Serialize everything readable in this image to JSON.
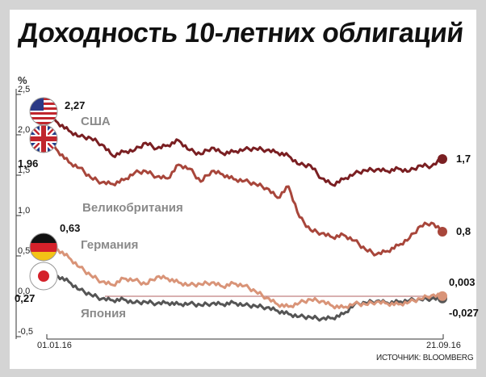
{
  "title": "Доходность 10-летних облигаций",
  "source": "ИСТОЧНИК: BLOOMBERG",
  "chart_data": {
    "type": "line",
    "ylabel": "%",
    "ylim": [
      -0.5,
      2.5
    ],
    "yticks": [
      {
        "value": 2.5,
        "label": "2,5"
      },
      {
        "value": 2.0,
        "label": "2,0"
      },
      {
        "value": 1.5,
        "label": "1,5"
      },
      {
        "value": 1.0,
        "label": "1,0"
      },
      {
        "value": 0.5,
        "label": "0,5"
      },
      {
        "value": 0.0,
        "label": "0,0"
      },
      {
        "value": -0.5,
        "label": "-0,5"
      }
    ],
    "x_start_label": "01.01.16",
    "x_end_label": "21.09.16",
    "reference_line": 0,
    "series": [
      {
        "name": "США",
        "color": "#7a1f22",
        "flag": "us-flag-icon",
        "start_label": "2,27",
        "end_label": "1,7",
        "values": [
          2.27,
          2.15,
          2.05,
          1.98,
          1.96,
          1.88,
          1.74,
          1.79,
          1.81,
          1.9,
          1.83,
          1.87,
          1.93,
          1.81,
          1.76,
          1.84,
          1.77,
          1.79,
          1.82,
          1.83,
          1.81,
          1.78,
          1.74,
          1.63,
          1.62,
          1.46,
          1.38,
          1.45,
          1.52,
          1.56,
          1.57,
          1.55,
          1.58,
          1.55,
          1.62,
          1.61,
          1.7
        ]
      },
      {
        "name": "Великобритания",
        "color": "#a8463b",
        "flag": "uk-flag-icon",
        "start_label": "1,96",
        "end_label": "0,8",
        "values": [
          1.96,
          1.8,
          1.66,
          1.59,
          1.47,
          1.41,
          1.39,
          1.44,
          1.53,
          1.55,
          1.48,
          1.46,
          1.63,
          1.58,
          1.42,
          1.55,
          1.51,
          1.45,
          1.43,
          1.39,
          1.34,
          1.22,
          1.36,
          0.98,
          0.82,
          0.78,
          0.73,
          0.76,
          0.69,
          0.58,
          0.52,
          0.56,
          0.63,
          0.72,
          0.87,
          0.91,
          0.8
        ]
      },
      {
        "name": "Германия",
        "color": "#d99478",
        "flag": "de-flag-icon",
        "start_label": "0,63",
        "end_label": "0,003",
        "values": [
          0.63,
          0.58,
          0.48,
          0.36,
          0.26,
          0.18,
          0.14,
          0.22,
          0.2,
          0.15,
          0.24,
          0.22,
          0.17,
          0.14,
          0.15,
          0.17,
          0.12,
          0.16,
          0.13,
          0.06,
          -0.02,
          -0.1,
          -0.13,
          -0.08,
          -0.04,
          -0.06,
          -0.12,
          -0.14,
          -0.09,
          -0.1,
          -0.07,
          -0.09,
          -0.1,
          -0.07,
          -0.03,
          0.01,
          0.003
        ]
      },
      {
        "name": "Япония",
        "color": "#555555",
        "flag": "jp-flag-icon",
        "start_label": "0,27",
        "end_label": "-0,027",
        "values": [
          0.27,
          0.25,
          0.18,
          0.08,
          0.02,
          -0.03,
          -0.05,
          -0.04,
          -0.08,
          -0.07,
          -0.09,
          -0.08,
          -0.1,
          -0.09,
          -0.11,
          -0.09,
          -0.1,
          -0.08,
          -0.11,
          -0.12,
          -0.14,
          -0.18,
          -0.22,
          -0.25,
          -0.26,
          -0.28,
          -0.27,
          -0.22,
          -0.1,
          -0.08,
          -0.06,
          -0.08,
          -0.07,
          -0.05,
          -0.04,
          -0.03,
          -0.027
        ]
      }
    ]
  }
}
